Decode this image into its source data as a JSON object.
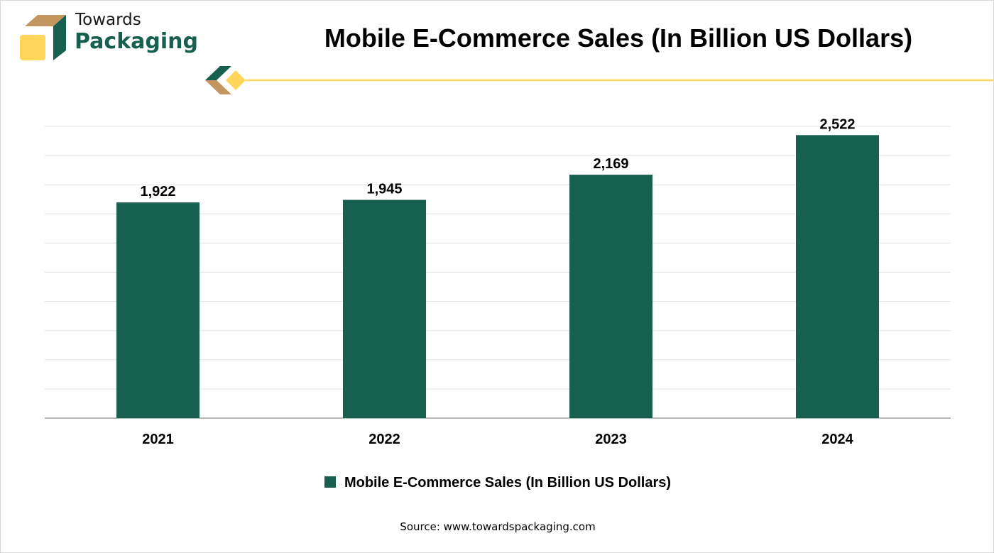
{
  "brand": {
    "line1": "Towards",
    "line2": "Packaging",
    "colors": {
      "green": "#17604f",
      "tan": "#c4965f",
      "yellow": "#ffd65a"
    }
  },
  "chart_data": {
    "type": "bar",
    "title": "Mobile E-Commerce Sales (In Billion US Dollars)",
    "categories": [
      "2021",
      "2022",
      "2023",
      "2024"
    ],
    "series": [
      {
        "name": "Mobile E-Commerce Sales (In Billion US Dollars)",
        "values": [
          1922,
          1945,
          2169,
          2522
        ],
        "color": "#17604f"
      }
    ],
    "data_labels": [
      "1,922",
      "1,945",
      "2,169",
      "2,522"
    ],
    "xlabel": "",
    "ylabel": "",
    "ylim": [
      0,
      2600
    ],
    "grid": true,
    "legend": "bottom"
  },
  "source": "Source: www.towardspackaging.com"
}
